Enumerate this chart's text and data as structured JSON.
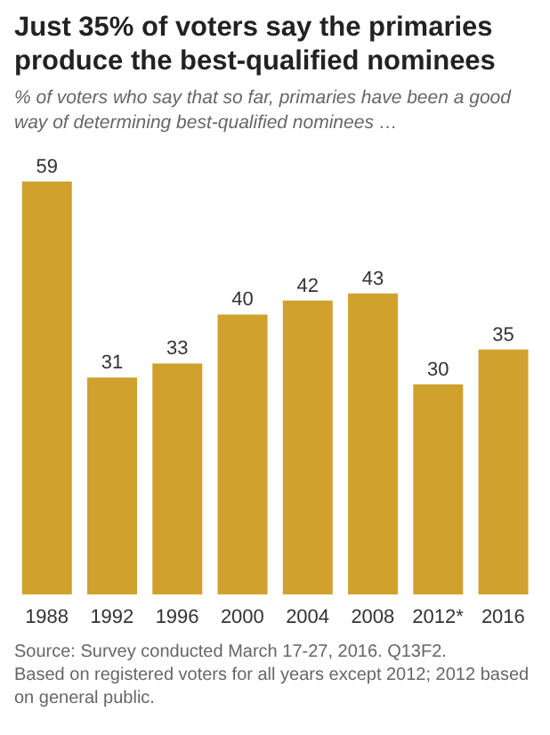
{
  "chart_data": {
    "type": "bar",
    "title": "Just 35% of voters say the primaries produce the best-qualified nominees",
    "subtitle": "% of voters who say that so far, primaries have been a good way of determining best-qualified nominees …",
    "categories": [
      "1988",
      "1992",
      "1996",
      "2000",
      "2004",
      "2008",
      "2012*",
      "2016"
    ],
    "values": [
      59,
      31,
      33,
      40,
      42,
      43,
      30,
      35
    ],
    "color": "#d1a12e",
    "data_labels": true,
    "grid": false,
    "legend": false,
    "annotations": [
      "Source: Survey conducted March 17-27, 2016. Q13F2.",
      "Based on registered voters for all years except 2012; 2012 based on general public."
    ]
  }
}
